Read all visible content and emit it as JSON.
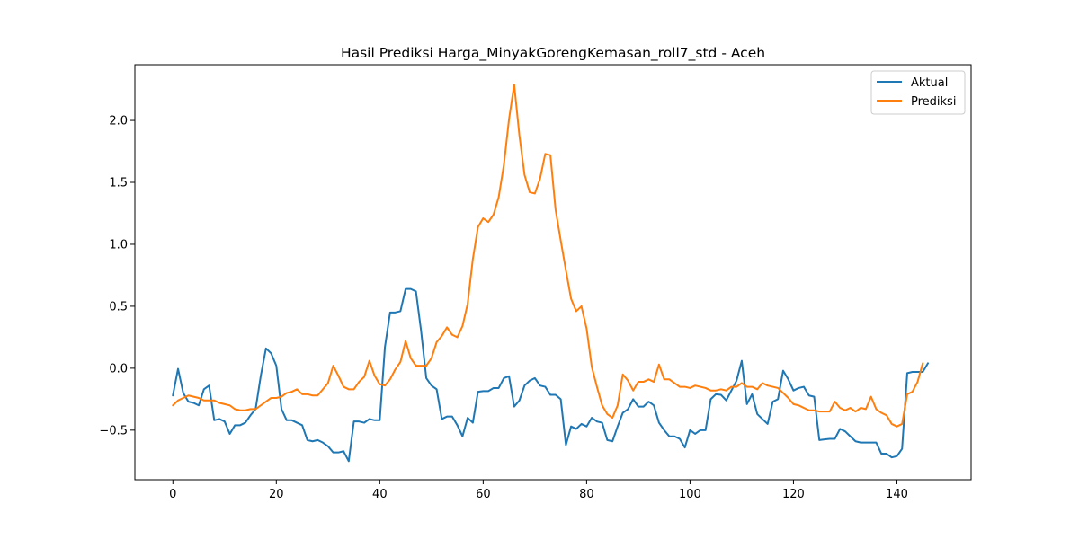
{
  "chart_data": {
    "type": "line",
    "title": "Hasil Prediksi Harga_MinyakGorengKemasan_roll7_std - Aceh",
    "xlabel": "",
    "ylabel": "",
    "xlim": [
      -7.35,
      154.35
    ],
    "ylim": [
      -0.9,
      2.45
    ],
    "x_ticks": [
      0,
      20,
      40,
      60,
      80,
      100,
      120,
      140
    ],
    "y_ticks": [
      -0.5,
      0.0,
      0.5,
      1.0,
      1.5,
      2.0
    ],
    "y_tick_labels": [
      "−0.5",
      "0.0",
      "0.5",
      "1.0",
      "1.5",
      "2.0"
    ],
    "grid": false,
    "legend_position": "top-right",
    "series": [
      {
        "name": "Aktual",
        "color": "#1f77b4",
        "values": [
          -0.22,
          -0.005,
          -0.2,
          -0.27,
          -0.28,
          -0.3,
          -0.17,
          -0.14,
          -0.42,
          -0.41,
          -0.43,
          -0.53,
          -0.46,
          -0.46,
          -0.44,
          -0.38,
          -0.33,
          -0.06,
          0.16,
          0.12,
          0.02,
          -0.33,
          -0.42,
          -0.42,
          -0.44,
          -0.46,
          -0.58,
          -0.59,
          -0.58,
          -0.6,
          -0.63,
          -0.68,
          -0.68,
          -0.67,
          -0.75,
          -0.43,
          -0.43,
          -0.44,
          -0.41,
          -0.42,
          -0.42,
          0.17,
          0.45,
          0.45,
          0.46,
          0.64,
          0.64,
          0.62,
          0.3,
          -0.08,
          -0.14,
          -0.17,
          -0.41,
          -0.39,
          -0.39,
          -0.46,
          -0.55,
          -0.4,
          -0.44,
          -0.19,
          -0.185,
          -0.185,
          -0.16,
          -0.16,
          -0.08,
          -0.065,
          -0.31,
          -0.26,
          -0.14,
          -0.1,
          -0.08,
          -0.14,
          -0.15,
          -0.215,
          -0.215,
          -0.25,
          -0.62,
          -0.47,
          -0.49,
          -0.45,
          -0.47,
          -0.4,
          -0.43,
          -0.44,
          -0.58,
          -0.59,
          -0.47,
          -0.36,
          -0.33,
          -0.25,
          -0.31,
          -0.31,
          -0.27,
          -0.3,
          -0.44,
          -0.5,
          -0.55,
          -0.55,
          -0.57,
          -0.64,
          -0.5,
          -0.53,
          -0.5,
          -0.5,
          -0.25,
          -0.21,
          -0.215,
          -0.26,
          -0.18,
          -0.1,
          0.06,
          -0.29,
          -0.21,
          -0.37,
          -0.41,
          -0.45,
          -0.27,
          -0.25,
          -0.02,
          -0.09,
          -0.18,
          -0.16,
          -0.15,
          -0.22,
          -0.23,
          -0.58,
          -0.575,
          -0.57,
          -0.57,
          -0.49,
          -0.51,
          -0.55,
          -0.59,
          -0.6,
          -0.6,
          -0.6,
          -0.6,
          -0.69,
          -0.69,
          -0.72,
          -0.71,
          -0.65,
          -0.04,
          -0.03,
          -0.03,
          -0.03,
          0.04
        ]
      },
      {
        "name": "Prediksi",
        "color": "#ff7f0e",
        "values": [
          -0.3,
          -0.26,
          -0.24,
          -0.22,
          -0.23,
          -0.24,
          -0.26,
          -0.26,
          -0.26,
          -0.28,
          -0.29,
          -0.3,
          -0.33,
          -0.34,
          -0.34,
          -0.33,
          -0.33,
          -0.3,
          -0.27,
          -0.24,
          -0.24,
          -0.23,
          -0.2,
          -0.19,
          -0.17,
          -0.21,
          -0.21,
          -0.22,
          -0.22,
          -0.17,
          -0.12,
          0.02,
          -0.06,
          -0.15,
          -0.17,
          -0.17,
          -0.11,
          -0.07,
          0.06,
          -0.06,
          -0.13,
          -0.14,
          -0.09,
          -0.01,
          0.05,
          0.22,
          0.08,
          0.02,
          0.02,
          0.02,
          0.08,
          0.21,
          0.26,
          0.33,
          0.27,
          0.25,
          0.34,
          0.52,
          0.88,
          1.14,
          1.21,
          1.18,
          1.24,
          1.38,
          1.64,
          2.01,
          2.29,
          1.88,
          1.56,
          1.42,
          1.41,
          1.53,
          1.73,
          1.72,
          1.28,
          1.03,
          0.79,
          0.56,
          0.46,
          0.5,
          0.32,
          0.01,
          -0.15,
          -0.3,
          -0.37,
          -0.4,
          -0.3,
          -0.05,
          -0.1,
          -0.18,
          -0.11,
          -0.11,
          -0.09,
          -0.11,
          0.03,
          -0.09,
          -0.09,
          -0.12,
          -0.15,
          -0.15,
          -0.16,
          -0.14,
          -0.15,
          -0.16,
          -0.18,
          -0.18,
          -0.17,
          -0.18,
          -0.15,
          -0.15,
          -0.12,
          -0.15,
          -0.15,
          -0.17,
          -0.12,
          -0.14,
          -0.15,
          -0.16,
          -0.2,
          -0.24,
          -0.29,
          -0.3,
          -0.32,
          -0.34,
          -0.34,
          -0.35,
          -0.35,
          -0.35,
          -0.27,
          -0.32,
          -0.34,
          -0.32,
          -0.35,
          -0.32,
          -0.33,
          -0.23,
          -0.33,
          -0.36,
          -0.38,
          -0.45,
          -0.47,
          -0.45,
          -0.21,
          -0.19,
          -0.11,
          0.04
        ]
      }
    ]
  }
}
